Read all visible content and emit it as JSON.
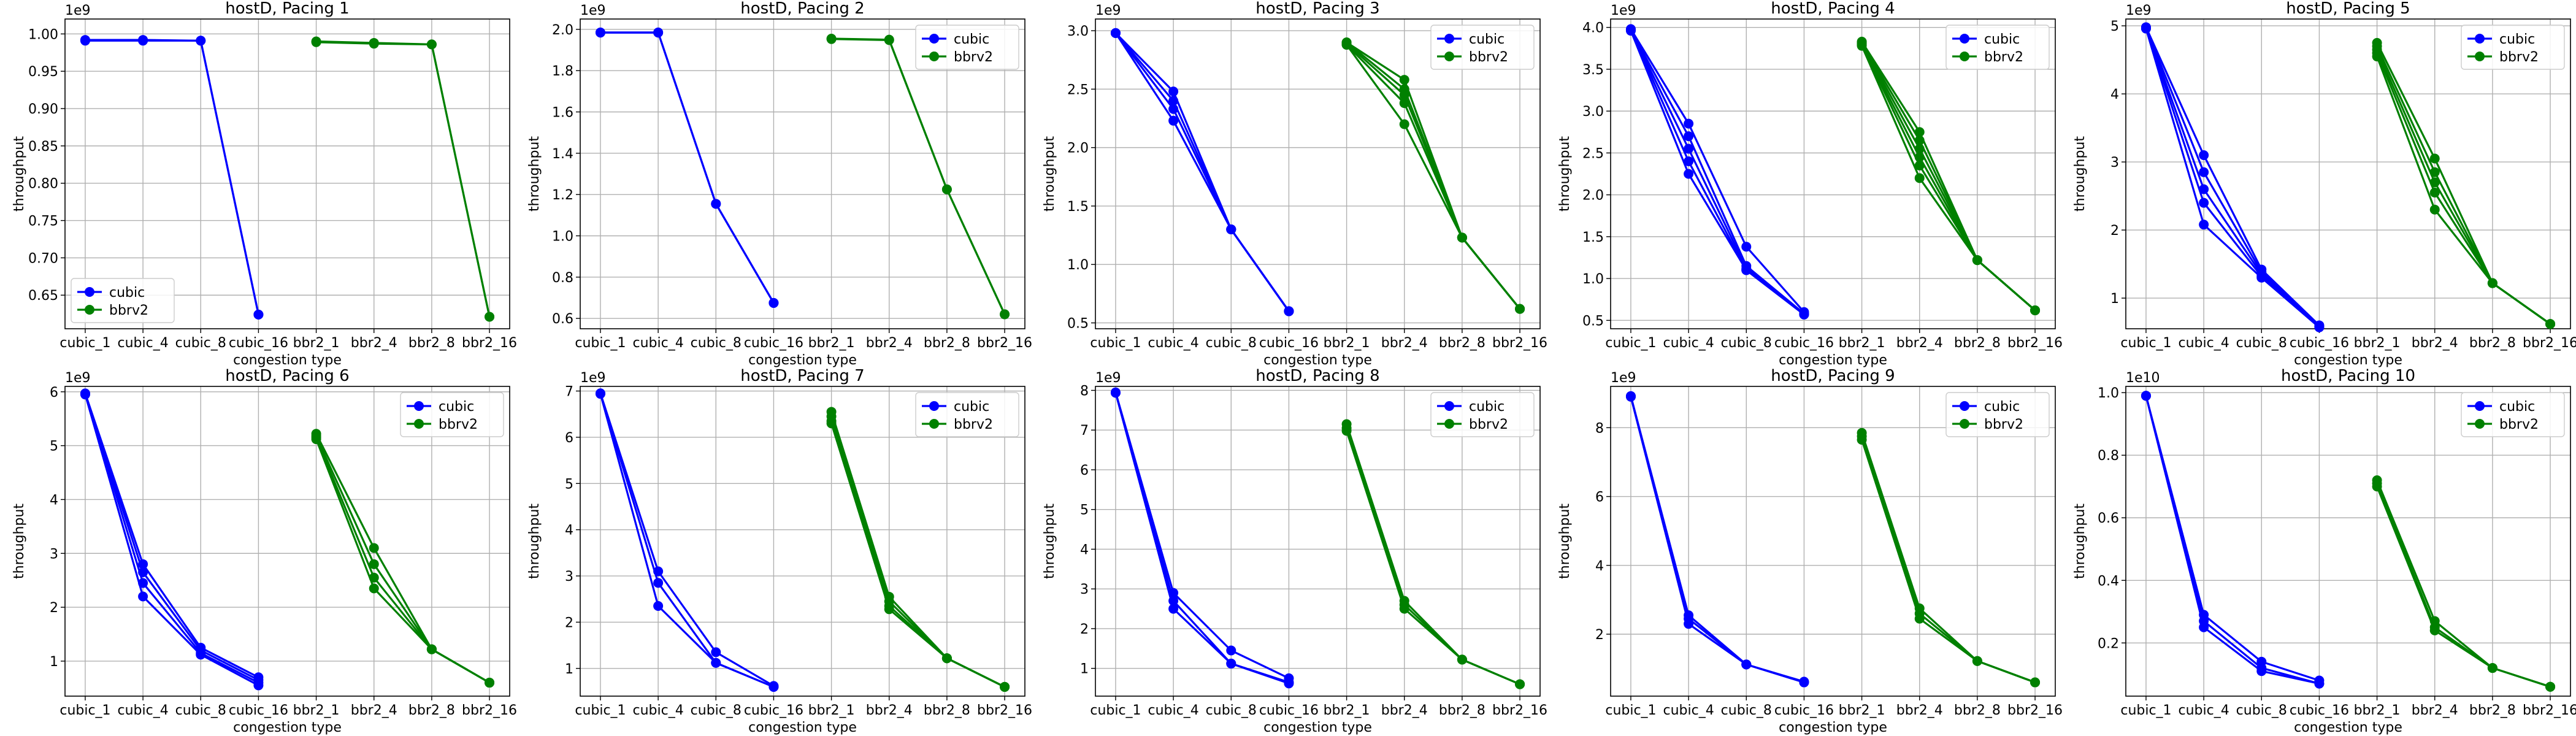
{
  "figure": {
    "x_label": "congestion type",
    "y_label": "throughput",
    "categories": [
      "cubic_1",
      "cubic_4",
      "cubic_8",
      "cubic_16",
      "bbr2_1",
      "bbr2_4",
      "bbr2_8",
      "bbr2_16"
    ],
    "legend": [
      {
        "name": "cubic",
        "color": "#0000ff"
      },
      {
        "name": "bbrv2",
        "color": "#008000"
      }
    ]
  },
  "chart_data": [
    {
      "type": "line",
      "title": "hostD, Pacing 1",
      "xlabel": "congestion type",
      "ylabel": "throughput",
      "offset_label": "1e9",
      "scale": 1000000000,
      "ylim": [
        0.605,
        1.02
      ],
      "yticks": [
        0.65,
        0.7,
        0.75,
        0.8,
        0.85,
        0.9,
        0.95,
        1.0
      ],
      "tick_decimals": 2,
      "legend_position": "lower-left",
      "series": [
        {
          "name": "cubic",
          "color": "#0000ff",
          "categories": [
            "cubic_1",
            "cubic_4",
            "cubic_8",
            "cubic_16"
          ],
          "runs": [
            [
              0.992,
              0.992,
              0.991,
              0.624
            ],
            [
              0.991,
              0.991,
              0.991,
              0.624
            ]
          ]
        },
        {
          "name": "bbrv2",
          "color": "#008000",
          "categories": [
            "bbr2_1",
            "bbr2_4",
            "bbr2_8",
            "bbr2_16"
          ],
          "runs": [
            [
              0.99,
              0.988,
              0.986,
              0.621
            ],
            [
              0.989,
              0.987,
              0.986,
              0.621
            ]
          ]
        }
      ]
    },
    {
      "type": "line",
      "title": "hostD, Pacing 2",
      "xlabel": "congestion type",
      "ylabel": "throughput",
      "offset_label": "1e9",
      "scale": 1000000000,
      "ylim": [
        0.55,
        2.05
      ],
      "yticks": [
        0.6,
        0.8,
        1.0,
        1.2,
        1.4,
        1.6,
        1.8,
        2.0
      ],
      "tick_decimals": 1,
      "legend_position": "upper-right",
      "series": [
        {
          "name": "cubic",
          "color": "#0000ff",
          "categories": [
            "cubic_1",
            "cubic_4",
            "cubic_8",
            "cubic_16"
          ],
          "runs": [
            [
              1.985,
              1.985,
              1.155,
              0.675
            ],
            [
              1.984,
              1.984,
              1.155,
              0.675
            ]
          ]
        },
        {
          "name": "bbrv2",
          "color": "#008000",
          "categories": [
            "bbr2_1",
            "bbr2_4",
            "bbr2_8",
            "bbr2_16"
          ],
          "runs": [
            [
              1.955,
              1.95,
              1.225,
              0.62
            ],
            [
              1.953,
              1.948,
              1.225,
              0.62
            ]
          ]
        }
      ]
    },
    {
      "type": "line",
      "title": "hostD, Pacing 3",
      "xlabel": "congestion type",
      "ylabel": "throughput",
      "offset_label": "1e9",
      "scale": 1000000000,
      "ylim": [
        0.45,
        3.1
      ],
      "yticks": [
        0.5,
        1.0,
        1.5,
        2.0,
        2.5,
        3.0
      ],
      "tick_decimals": 1,
      "legend_position": "upper-right",
      "series": [
        {
          "name": "cubic",
          "color": "#0000ff",
          "categories": [
            "cubic_1",
            "cubic_4",
            "cubic_8",
            "cubic_16"
          ],
          "runs": [
            [
              2.98,
              2.48,
              1.3,
              0.6
            ],
            [
              2.98,
              2.4,
              1.3,
              0.6
            ],
            [
              2.98,
              2.33,
              1.3,
              0.6
            ],
            [
              2.98,
              2.23,
              1.3,
              0.6
            ]
          ]
        },
        {
          "name": "bbrv2",
          "color": "#008000",
          "categories": [
            "bbr2_1",
            "bbr2_4",
            "bbr2_8",
            "bbr2_16"
          ],
          "runs": [
            [
              2.9,
              2.58,
              1.23,
              0.62
            ],
            [
              2.9,
              2.5,
              1.23,
              0.62
            ],
            [
              2.89,
              2.45,
              1.23,
              0.62
            ],
            [
              2.88,
              2.38,
              1.23,
              0.62
            ],
            [
              2.88,
              2.2,
              1.23,
              0.62
            ]
          ]
        }
      ]
    },
    {
      "type": "line",
      "title": "hostD, Pacing 4",
      "xlabel": "congestion type",
      "ylabel": "throughput",
      "offset_label": "1e9",
      "scale": 1000000000,
      "ylim": [
        0.4,
        4.1
      ],
      "yticks": [
        0.5,
        1.0,
        1.5,
        2.0,
        2.5,
        3.0,
        3.5,
        4.0
      ],
      "tick_decimals": 1,
      "legend_position": "upper-right",
      "series": [
        {
          "name": "cubic",
          "color": "#0000ff",
          "categories": [
            "cubic_1",
            "cubic_4",
            "cubic_8",
            "cubic_16"
          ],
          "runs": [
            [
              3.98,
              2.85,
              1.38,
              0.6
            ],
            [
              3.97,
              2.7,
              1.15,
              0.58
            ],
            [
              3.97,
              2.55,
              1.12,
              0.58
            ],
            [
              3.97,
              2.4,
              1.1,
              0.57
            ],
            [
              3.96,
              2.25,
              1.1,
              0.57
            ]
          ]
        },
        {
          "name": "bbrv2",
          "color": "#008000",
          "categories": [
            "bbr2_1",
            "bbr2_4",
            "bbr2_8",
            "bbr2_16"
          ],
          "runs": [
            [
              3.83,
              2.75,
              1.22,
              0.62
            ],
            [
              3.82,
              2.65,
              1.22,
              0.62
            ],
            [
              3.81,
              2.55,
              1.22,
              0.62
            ],
            [
              3.8,
              2.45,
              1.22,
              0.62
            ],
            [
              3.79,
              2.35,
              1.22,
              0.62
            ],
            [
              3.78,
              2.2,
              1.22,
              0.62
            ]
          ]
        }
      ]
    },
    {
      "type": "line",
      "title": "hostD, Pacing 5",
      "xlabel": "congestion type",
      "ylabel": "throughput",
      "offset_label": "1e9",
      "scale": 1000000000,
      "ylim": [
        0.55,
        5.1
      ],
      "yticks": [
        1,
        2,
        3,
        4,
        5
      ],
      "tick_decimals": 0,
      "legend_position": "upper-right",
      "series": [
        {
          "name": "cubic",
          "color": "#0000ff",
          "categories": [
            "cubic_1",
            "cubic_4",
            "cubic_8",
            "cubic_16"
          ],
          "runs": [
            [
              4.98,
              3.1,
              1.42,
              0.6
            ],
            [
              4.97,
              2.85,
              1.38,
              0.59
            ],
            [
              4.97,
              2.6,
              1.35,
              0.58
            ],
            [
              4.96,
              2.4,
              1.32,
              0.58
            ],
            [
              4.96,
              2.08,
              1.3,
              0.57
            ]
          ]
        },
        {
          "name": "bbrv2",
          "color": "#008000",
          "categories": [
            "bbr2_1",
            "bbr2_4",
            "bbr2_8",
            "bbr2_16"
          ],
          "runs": [
            [
              4.75,
              3.05,
              1.22,
              0.62
            ],
            [
              4.7,
              2.85,
              1.22,
              0.62
            ],
            [
              4.65,
              2.7,
              1.22,
              0.62
            ],
            [
              4.6,
              2.55,
              1.22,
              0.62
            ],
            [
              4.55,
              2.3,
              1.22,
              0.62
            ]
          ]
        }
      ]
    },
    {
      "type": "line",
      "title": "hostD, Pacing 6",
      "xlabel": "congestion type",
      "ylabel": "throughput",
      "offset_label": "1e9",
      "scale": 1000000000,
      "ylim": [
        0.35,
        6.1
      ],
      "yticks": [
        1,
        2,
        3,
        4,
        5,
        6
      ],
      "tick_decimals": 0,
      "legend_position": "upper-right",
      "series": [
        {
          "name": "cubic",
          "color": "#0000ff",
          "categories": [
            "cubic_1",
            "cubic_4",
            "cubic_8",
            "cubic_16"
          ],
          "runs": [
            [
              5.97,
              2.8,
              1.25,
              0.7
            ],
            [
              5.96,
              2.65,
              1.2,
              0.65
            ],
            [
              5.96,
              2.45,
              1.15,
              0.6
            ],
            [
              5.95,
              2.2,
              1.12,
              0.55
            ]
          ]
        },
        {
          "name": "bbrv2",
          "color": "#008000",
          "categories": [
            "bbr2_1",
            "bbr2_4",
            "bbr2_8",
            "bbr2_16"
          ],
          "runs": [
            [
              5.22,
              3.1,
              1.22,
              0.6
            ],
            [
              5.18,
              2.8,
              1.22,
              0.6
            ],
            [
              5.15,
              2.55,
              1.22,
              0.6
            ],
            [
              5.12,
              2.35,
              1.22,
              0.6
            ]
          ]
        }
      ]
    },
    {
      "type": "line",
      "title": "hostD, Pacing 7",
      "xlabel": "congestion type",
      "ylabel": "throughput",
      "offset_label": "1e9",
      "scale": 1000000000,
      "ylim": [
        0.4,
        7.1
      ],
      "yticks": [
        1,
        2,
        3,
        4,
        5,
        6,
        7
      ],
      "tick_decimals": 0,
      "legend_position": "upper-right",
      "series": [
        {
          "name": "cubic",
          "color": "#0000ff",
          "categories": [
            "cubic_1",
            "cubic_4",
            "cubic_8",
            "cubic_16"
          ],
          "runs": [
            [
              6.95,
              3.1,
              1.35,
              0.62
            ],
            [
              6.94,
              2.85,
              1.12,
              0.6
            ],
            [
              6.94,
              2.35,
              1.12,
              0.6
            ]
          ]
        },
        {
          "name": "bbrv2",
          "color": "#008000",
          "categories": [
            "bbr2_1",
            "bbr2_4",
            "bbr2_8",
            "bbr2_16"
          ],
          "runs": [
            [
              6.55,
              2.55,
              1.22,
              0.6
            ],
            [
              6.45,
              2.45,
              1.22,
              0.6
            ],
            [
              6.35,
              2.35,
              1.22,
              0.6
            ],
            [
              6.3,
              2.28,
              1.22,
              0.6
            ]
          ]
        }
      ]
    },
    {
      "type": "line",
      "title": "hostD, Pacing 8",
      "xlabel": "congestion type",
      "ylabel": "throughput",
      "offset_label": "1e9",
      "scale": 1000000000,
      "ylim": [
        0.3,
        8.1
      ],
      "yticks": [
        1,
        2,
        3,
        4,
        5,
        6,
        7,
        8
      ],
      "tick_decimals": 0,
      "legend_position": "upper-right",
      "series": [
        {
          "name": "cubic",
          "color": "#0000ff",
          "categories": [
            "cubic_1",
            "cubic_4",
            "cubic_8",
            "cubic_16"
          ],
          "runs": [
            [
              7.95,
              2.9,
              1.45,
              0.75
            ],
            [
              7.94,
              2.7,
              1.12,
              0.65
            ],
            [
              7.94,
              2.5,
              1.12,
              0.62
            ]
          ]
        },
        {
          "name": "bbrv2",
          "color": "#008000",
          "categories": [
            "bbr2_1",
            "bbr2_4",
            "bbr2_8",
            "bbr2_16"
          ],
          "runs": [
            [
              7.15,
              2.7,
              1.22,
              0.6
            ],
            [
              7.05,
              2.6,
              1.22,
              0.6
            ],
            [
              6.98,
              2.5,
              1.22,
              0.6
            ]
          ]
        }
      ]
    },
    {
      "type": "line",
      "title": "hostD, Pacing 9",
      "xlabel": "congestion type",
      "ylabel": "throughput",
      "offset_label": "1e9",
      "scale": 1000000000,
      "ylim": [
        0.2,
        9.2
      ],
      "yticks": [
        2,
        4,
        6,
        8
      ],
      "tick_decimals": 0,
      "legend_position": "upper-right",
      "series": [
        {
          "name": "cubic",
          "color": "#0000ff",
          "categories": [
            "cubic_1",
            "cubic_4",
            "cubic_8",
            "cubic_16"
          ],
          "runs": [
            [
              8.92,
              2.55,
              1.12,
              0.62
            ],
            [
              8.91,
              2.45,
              1.12,
              0.6
            ],
            [
              8.9,
              2.3,
              1.12,
              0.6
            ]
          ]
        },
        {
          "name": "bbrv2",
          "color": "#008000",
          "categories": [
            "bbr2_1",
            "bbr2_4",
            "bbr2_8",
            "bbr2_16"
          ],
          "runs": [
            [
              7.85,
              2.75,
              1.22,
              0.6
            ],
            [
              7.75,
              2.6,
              1.22,
              0.6
            ],
            [
              7.65,
              2.45,
              1.22,
              0.6
            ]
          ]
        }
      ]
    },
    {
      "type": "line",
      "title": "hostD, Pacing 10",
      "xlabel": "congestion type",
      "ylabel": "throughput",
      "offset_label": "1e10",
      "scale": 10000000000,
      "ylim": [
        0.03,
        1.02
      ],
      "yticks": [
        0.2,
        0.4,
        0.6,
        0.8,
        1.0
      ],
      "tick_decimals": 1,
      "legend_position": "upper-right",
      "series": [
        {
          "name": "cubic",
          "color": "#0000ff",
          "categories": [
            "cubic_1",
            "cubic_4",
            "cubic_8",
            "cubic_16"
          ],
          "runs": [
            [
              0.99,
              0.29,
              0.14,
              0.08
            ],
            [
              0.99,
              0.27,
              0.12,
              0.07
            ],
            [
              0.99,
              0.25,
              0.11,
              0.07
            ]
          ]
        },
        {
          "name": "bbrv2",
          "color": "#008000",
          "categories": [
            "bbr2_1",
            "bbr2_4",
            "bbr2_8",
            "bbr2_16"
          ],
          "runs": [
            [
              0.72,
              0.27,
              0.12,
              0.06
            ],
            [
              0.71,
              0.25,
              0.12,
              0.06
            ],
            [
              0.7,
              0.24,
              0.12,
              0.06
            ]
          ]
        }
      ]
    }
  ]
}
